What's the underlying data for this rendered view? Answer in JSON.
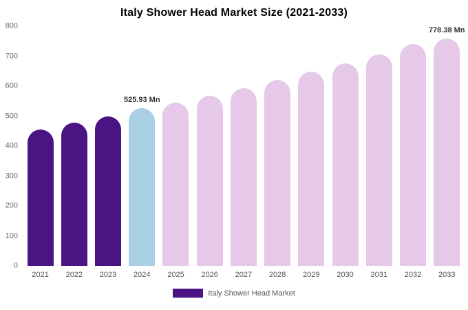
{
  "title": "Italy Shower Head Market Size (2021-2033)",
  "legend": {
    "label": "Italy Shower Head Market",
    "swatch_color": "#4a1582"
  },
  "colors": {
    "historical_bar": "#4a1582",
    "current_year_bar": "#a9cfe5",
    "forecast_bar": "#e6c8e8",
    "annotation_text": "#333333",
    "axis_text": "#666666",
    "background": "#ffffff"
  },
  "chart_data": {
    "type": "bar",
    "title": "Italy Shower Head Market Size (2021-2033)",
    "xlabel": "",
    "ylabel": "",
    "unit": "Mn",
    "ylim": [
      0,
      800
    ],
    "yticks": [
      0,
      100,
      200,
      300,
      400,
      500,
      600,
      700,
      800
    ],
    "grid": false,
    "legend_position": "bottom",
    "categories": [
      "2021",
      "2022",
      "2023",
      "2024",
      "2025",
      "2026",
      "2027",
      "2028",
      "2029",
      "2030",
      "2031",
      "2032",
      "2033"
    ],
    "values": [
      455,
      478,
      500,
      525.93,
      546,
      569,
      594,
      620,
      648,
      676,
      706,
      740,
      778.38
    ],
    "bar_colors": [
      "#4a1582",
      "#4a1582",
      "#4a1582",
      "#a9cfe5",
      "#e6c8e8",
      "#e6c8e8",
      "#e6c8e8",
      "#e6c8e8",
      "#e6c8e8",
      "#e6c8e8",
      "#e6c8e8",
      "#e6c8e8",
      "#e6c8e8"
    ],
    "annotations": [
      {
        "category": "2024",
        "text": "525.93 Mn"
      },
      {
        "category": "2033",
        "text": "778.38 Mn"
      }
    ]
  }
}
